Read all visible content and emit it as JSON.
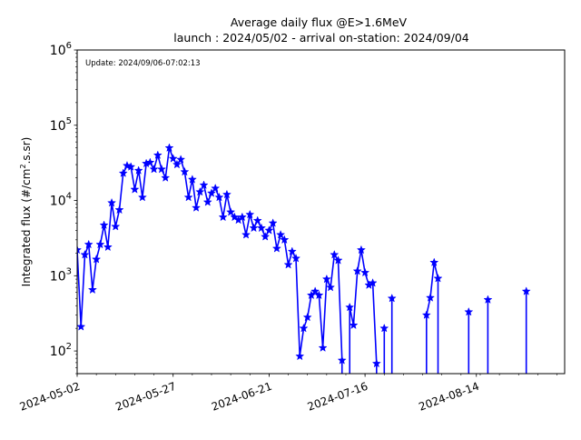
{
  "chart_data": {
    "type": "line",
    "title": "Average daily flux @E>1.6MeV",
    "subtitle": "launch : 2024/05/02 - arrival on-station: 2024/09/04",
    "annotation": "Update: 2024/09/06-07:02:13",
    "ylabel_prefix": "Integrated flux (#/cm",
    "ylabel_sup": "2",
    "ylabel_suffix": ".s.sr)",
    "yscale": "log",
    "ylim": [
      50,
      1000000
    ],
    "xlim": [
      "2024-05-02",
      "2024-09-06"
    ],
    "x_ticks": [
      "2024-05-02",
      "2024-05-27",
      "2024-06-21",
      "2024-07-16",
      "2024-08-14"
    ],
    "y_ticks": [
      {
        "value": 100,
        "base": "10",
        "exp": "2"
      },
      {
        "value": 1000,
        "base": "10",
        "exp": "3"
      },
      {
        "value": 10000,
        "base": "10",
        "exp": "4"
      },
      {
        "value": 100000,
        "base": "10",
        "exp": "5"
      },
      {
        "value": 1000000,
        "base": "10",
        "exp": "6"
      }
    ],
    "grid": false,
    "color": "#0000ff",
    "marker": "star",
    "series": [
      {
        "name": "",
        "x": [
          "2024-05-02",
          "2024-05-03",
          "2024-05-04",
          "2024-05-05",
          "2024-05-06",
          "2024-05-07",
          "2024-05-08",
          "2024-05-09",
          "2024-05-10",
          "2024-05-11",
          "2024-05-12",
          "2024-05-13",
          "2024-05-14",
          "2024-05-15",
          "2024-05-16",
          "2024-05-17",
          "2024-05-18",
          "2024-05-19",
          "2024-05-20",
          "2024-05-21",
          "2024-05-22",
          "2024-05-23",
          "2024-05-24",
          "2024-05-25",
          "2024-05-26",
          "2024-05-27",
          "2024-05-28",
          "2024-05-29",
          "2024-05-30",
          "2024-05-31",
          "2024-06-01",
          "2024-06-02",
          "2024-06-03",
          "2024-06-04",
          "2024-06-05",
          "2024-06-06",
          "2024-06-07",
          "2024-06-08",
          "2024-06-09",
          "2024-06-10",
          "2024-06-11",
          "2024-06-12",
          "2024-06-13",
          "2024-06-14",
          "2024-06-15",
          "2024-06-16",
          "2024-06-17",
          "2024-06-18",
          "2024-06-19",
          "2024-06-20",
          "2024-06-21",
          "2024-06-22",
          "2024-06-23",
          "2024-06-24",
          "2024-06-25",
          "2024-06-26",
          "2024-06-27",
          "2024-06-28",
          "2024-06-29",
          "2024-06-30",
          "2024-07-01",
          "2024-07-02",
          "2024-07-03",
          "2024-07-04",
          "2024-07-05",
          "2024-07-06",
          "2024-07-07",
          "2024-07-08",
          "2024-07-09",
          "2024-07-10",
          "2024-07-11",
          "2024-07-12",
          "2024-07-13",
          "2024-07-14",
          "2024-07-15",
          "2024-07-16",
          "2024-07-17"
        ],
        "y": [
          2200,
          210,
          1900,
          2600,
          650,
          1650,
          2600,
          4700,
          2400,
          9300,
          4500,
          7500,
          23000,
          29000,
          28000,
          14000,
          25000,
          11000,
          31000,
          32000,
          26000,
          40000,
          26000,
          20000,
          50000,
          36000,
          30000,
          35000,
          24000,
          11000,
          19000,
          8000,
          13000,
          16000,
          9500,
          12500,
          14500,
          11000,
          6000,
          12000,
          7000,
          6000,
          5500,
          6000,
          3500,
          6500,
          4300,
          5400,
          4300,
          3300,
          4000,
          5000,
          2300,
          3500,
          3000,
          1400,
          2100,
          1700,
          85,
          200,
          280,
          550,
          620,
          550,
          110,
          900,
          700,
          1900,
          1600,
          75,
          null,
          380,
          220,
          1150,
          2200,
          1100,
          750
        ],
        "extra_x": [
          "2024-07-18",
          "2024-07-19",
          "2024-07-21",
          "2024-07-23",
          "2024-08-01",
          "2024-08-02",
          "2024-08-03",
          "2024-08-04",
          "2024-08-12",
          "2024-08-17",
          "2024-08-27"
        ],
        "extra_y": [
          800,
          68,
          200,
          500,
          300,
          510,
          1500,
          920,
          330,
          480,
          620
        ]
      }
    ]
  }
}
